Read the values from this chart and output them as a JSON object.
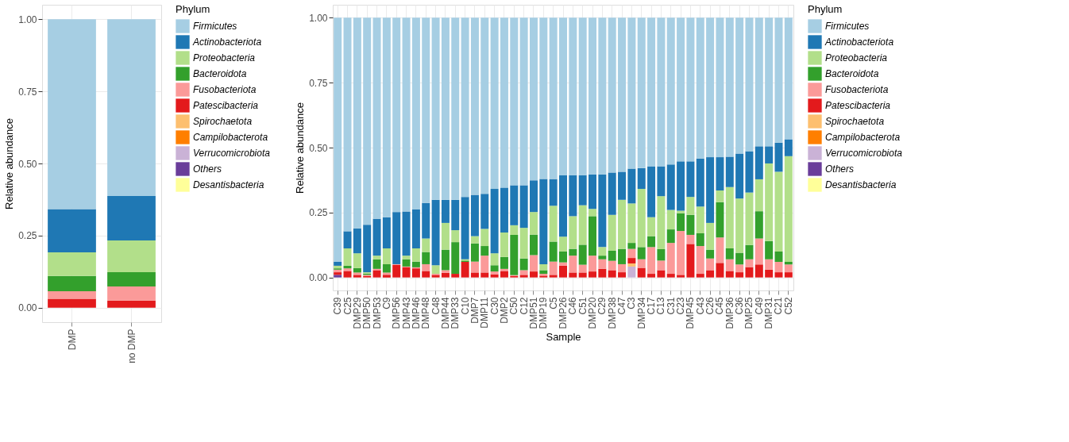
{
  "chart_data": [
    {
      "type": "bar",
      "stacked": true,
      "ylabel": "Relative abundance",
      "legend_title": "Phylum",
      "legend": "right",
      "grid": true,
      "categories": [
        "DMP",
        "no DMP"
      ],
      "ylim": [
        -0.05,
        1.05
      ],
      "yticks": [
        {
          "value": 0,
          "label": "0.00"
        },
        {
          "value": 0.25,
          "label": "0.25"
        },
        {
          "value": 0.5,
          "label": "0.50"
        },
        {
          "value": 0.75,
          "label": "0.75"
        },
        {
          "value": 1,
          "label": "1.00"
        }
      ],
      "series": [
        {
          "name": "Desantisbacteria",
          "color": "#ffff99",
          "values": [
            0,
            0
          ]
        },
        {
          "name": "Others",
          "color": "#6a3d9a",
          "values": [
            0,
            0
          ]
        },
        {
          "name": "Verrucomicrobiota",
          "color": "#cab2d6",
          "values": [
            0,
            0
          ]
        },
        {
          "name": "Campilobacterota",
          "color": "#ff7f00",
          "values": [
            0,
            0
          ]
        },
        {
          "name": "Spirochaetota",
          "color": "#fdbf6f",
          "values": [
            0,
            0
          ]
        },
        {
          "name": "Patescibacteria",
          "color": "#e31a1c",
          "values": [
            0.031,
            0.025
          ]
        },
        {
          "name": "Fusobacteriota",
          "color": "#fb9a99",
          "values": [
            0.026,
            0.049
          ]
        },
        {
          "name": "Bacteroidota",
          "color": "#33a02c",
          "values": [
            0.053,
            0.049
          ]
        },
        {
          "name": "Proteobacteria",
          "color": "#b2df8a",
          "values": [
            0.082,
            0.11
          ]
        },
        {
          "name": "Actinobacteriota",
          "color": "#1f78b4",
          "values": [
            0.15,
            0.154
          ]
        },
        {
          "name": "Firmicutes",
          "color": "#a6cee3",
          "values": [
            0.658,
            0.613
          ]
        }
      ]
    },
    {
      "type": "bar",
      "stacked": true,
      "ylabel": "Relative abundance",
      "xlabel": "Sample",
      "legend_title": "Phylum",
      "legend": "right",
      "grid": true,
      "categories": [
        "C39",
        "C25",
        "DMP29",
        "DMP50",
        "DMP53",
        "C9",
        "DMP56",
        "DMP43",
        "DMP46",
        "DMP48",
        "C48",
        "DMP44",
        "DMP33",
        "C10",
        "DMP7",
        "DMP11",
        "C30",
        "DMP2",
        "C50",
        "C12",
        "DMP51",
        "DMP19",
        "C5",
        "DMP26",
        "C46",
        "C51",
        "DMP20",
        "C29",
        "DMP38",
        "C47",
        "C3",
        "DMP34",
        "C17",
        "C13",
        "C31",
        "C23",
        "DMP45",
        "C43",
        "C26",
        "C45",
        "DMP36",
        "C36",
        "DMP25",
        "C49",
        "DMP31",
        "C21",
        "C52"
      ],
      "ylim": [
        -0.05,
        1.05
      ],
      "yticks": [
        {
          "value": 0,
          "label": "0.00"
        },
        {
          "value": 0.25,
          "label": "0.25"
        },
        {
          "value": 0.5,
          "label": "0.50"
        },
        {
          "value": 0.75,
          "label": "0.75"
        },
        {
          "value": 1,
          "label": "1.00"
        }
      ],
      "series": [
        {
          "name": "Desantisbacteria",
          "color": "#ffff99",
          "values": [
            0,
            0,
            0,
            0,
            0,
            0,
            0,
            0,
            0,
            0,
            0,
            0,
            0,
            0,
            0,
            0,
            0,
            0,
            0,
            0,
            0,
            0,
            0,
            0,
            0,
            0,
            0,
            0,
            0,
            0,
            0,
            0,
            0,
            0,
            0,
            0,
            0,
            0,
            0,
            0,
            0,
            0,
            0,
            0,
            0,
            0,
            0
          ]
        },
        {
          "name": "Others",
          "color": "#6a3d9a",
          "values": [
            0.01,
            0,
            0,
            0,
            0,
            0,
            0,
            0,
            0,
            0,
            0,
            0,
            0,
            0,
            0,
            0,
            0,
            0,
            0,
            0,
            0,
            0,
            0,
            0,
            0,
            0,
            0,
            0,
            0,
            0,
            0,
            0,
            0,
            0,
            0,
            0,
            0,
            0,
            0,
            0,
            0,
            0,
            0,
            0,
            0,
            0,
            0
          ]
        },
        {
          "name": "Verrucomicrobiota",
          "color": "#cab2d6",
          "values": [
            0,
            0,
            0,
            0,
            0,
            0,
            0,
            0,
            0,
            0,
            0,
            0,
            0,
            0,
            0,
            0,
            0,
            0,
            0,
            0,
            0,
            0,
            0,
            0,
            0,
            0,
            0,
            0,
            0,
            0,
            0.042,
            0,
            0,
            0,
            0,
            0,
            0,
            0,
            0,
            0,
            0,
            0,
            0,
            0,
            0,
            0,
            0
          ]
        },
        {
          "name": "Campilobacterota",
          "color": "#ff7f00",
          "values": [
            0,
            0,
            0,
            0,
            0,
            0,
            0,
            0,
            0,
            0,
            0,
            0,
            0,
            0,
            0,
            0,
            0,
            0,
            0,
            0,
            0,
            0,
            0,
            0,
            0,
            0,
            0,
            0,
            0,
            0,
            0,
            0,
            0,
            0,
            0,
            0,
            0,
            0,
            0,
            0,
            0,
            0,
            0,
            0,
            0,
            0,
            0
          ]
        },
        {
          "name": "Spirochaetota",
          "color": "#fdbf6f",
          "values": [
            0,
            0,
            0,
            0,
            0,
            0,
            0,
            0,
            0,
            0,
            0,
            0,
            0,
            0,
            0,
            0,
            0,
            0,
            0,
            0,
            0,
            0,
            0,
            0,
            0,
            0,
            0,
            0,
            0,
            0,
            0.012,
            0,
            0,
            0,
            0,
            0,
            0,
            0,
            0,
            0,
            0,
            0,
            0,
            0,
            0,
            0,
            0
          ]
        },
        {
          "name": "Patescibacteria",
          "color": "#e31a1c",
          "values": [
            0.01,
            0.025,
            0.01,
            0.005,
            0.028,
            0.01,
            0.048,
            0.04,
            0.035,
            0.025,
            0.01,
            0.018,
            0.014,
            0.06,
            0.019,
            0.019,
            0.012,
            0.025,
            0.005,
            0.01,
            0.023,
            0.007,
            0.01,
            0.045,
            0.019,
            0.019,
            0.023,
            0.033,
            0.028,
            0.02,
            0.021,
            0.037,
            0.014,
            0.028,
            0.014,
            0.01,
            0.129,
            0.014,
            0.028,
            0.056,
            0.025,
            0.02,
            0.04,
            0.05,
            0.03,
            0.02,
            0.02
          ]
        },
        {
          "name": "Fusobacteriota",
          "color": "#fb9a99",
          "values": [
            0.01,
            0.01,
            0.009,
            0.005,
            0.005,
            0.009,
            0.003,
            0.002,
            0.004,
            0.026,
            0.004,
            0.01,
            0,
            0,
            0.042,
            0.065,
            0.011,
            0.008,
            0.004,
            0.018,
            0.063,
            0.007,
            0.051,
            0.013,
            0.065,
            0.03,
            0.061,
            0.037,
            0.036,
            0.031,
            0.035,
            0.033,
            0.103,
            0.037,
            0.119,
            0.169,
            0.035,
            0.107,
            0.045,
            0.098,
            0.045,
            0.03,
            0.03,
            0.1,
            0.04,
            0.04,
            0.03
          ]
        },
        {
          "name": "Bacteroidota",
          "color": "#33a02c",
          "values": [
            0.005,
            0.01,
            0.017,
            0.005,
            0.037,
            0.032,
            0,
            0.028,
            0.022,
            0.047,
            0,
            0.079,
            0.122,
            0.005,
            0.07,
            0.037,
            0.024,
            0.046,
            0.155,
            0.045,
            0.079,
            0.014,
            0.077,
            0.042,
            0.026,
            0.077,
            0.152,
            0.014,
            0.039,
            0.059,
            0.023,
            0.047,
            0.042,
            0.044,
            0.052,
            0.068,
            0.077,
            0.049,
            0.034,
            0.136,
            0.042,
            0.045,
            0.055,
            0.105,
            0.07,
            0.04,
            0.01
          ]
        },
        {
          "name": "Proteobacteria",
          "color": "#b2df8a",
          "values": [
            0.01,
            0.067,
            0.057,
            0.005,
            0.014,
            0.061,
            0,
            0.014,
            0.051,
            0.052,
            0.033,
            0.103,
            0.046,
            0.005,
            0.028,
            0.066,
            0.046,
            0.094,
            0.037,
            0.118,
            0.087,
            0.023,
            0.138,
            0.057,
            0.126,
            0.152,
            0.028,
            0.033,
            0.138,
            0.189,
            0.152,
            0.224,
            0.073,
            0.204,
            0.075,
            0.01,
            0.069,
            0.103,
            0.103,
            0.045,
            0.236,
            0.209,
            0.202,
            0.123,
            0.299,
            0.307,
            0.407
          ]
        },
        {
          "name": "Actinobacteriota",
          "color": "#1f78b4",
          "values": [
            0.015,
            0.066,
            0.096,
            0.183,
            0.142,
            0.12,
            0.201,
            0.17,
            0.15,
            0.137,
            0.252,
            0.089,
            0.117,
            0.24,
            0.159,
            0.135,
            0.248,
            0.173,
            0.154,
            0.164,
            0.122,
            0.328,
            0.103,
            0.236,
            0.158,
            0.116,
            0.133,
            0.28,
            0.163,
            0.108,
            0.134,
            0.08,
            0.196,
            0.115,
            0.175,
            0.19,
            0.137,
            0.185,
            0.253,
            0.128,
            0.117,
            0.173,
            0.159,
            0.127,
            0.066,
            0.112,
            0.065
          ]
        },
        {
          "name": "Firmicutes",
          "color": "#a6cee3",
          "values": [
            0.94,
            0.822,
            0.811,
            0.797,
            0.774,
            0.768,
            0.748,
            0.746,
            0.738,
            0.713,
            0.701,
            0.701,
            0.701,
            0.69,
            0.682,
            0.678,
            0.659,
            0.654,
            0.645,
            0.645,
            0.626,
            0.621,
            0.621,
            0.607,
            0.606,
            0.606,
            0.603,
            0.603,
            0.596,
            0.593,
            0.581,
            0.579,
            0.572,
            0.572,
            0.565,
            0.553,
            0.553,
            0.542,
            0.537,
            0.537,
            0.535,
            0.523,
            0.514,
            0.495,
            0.495,
            0.481,
            0.468
          ]
        }
      ]
    }
  ]
}
